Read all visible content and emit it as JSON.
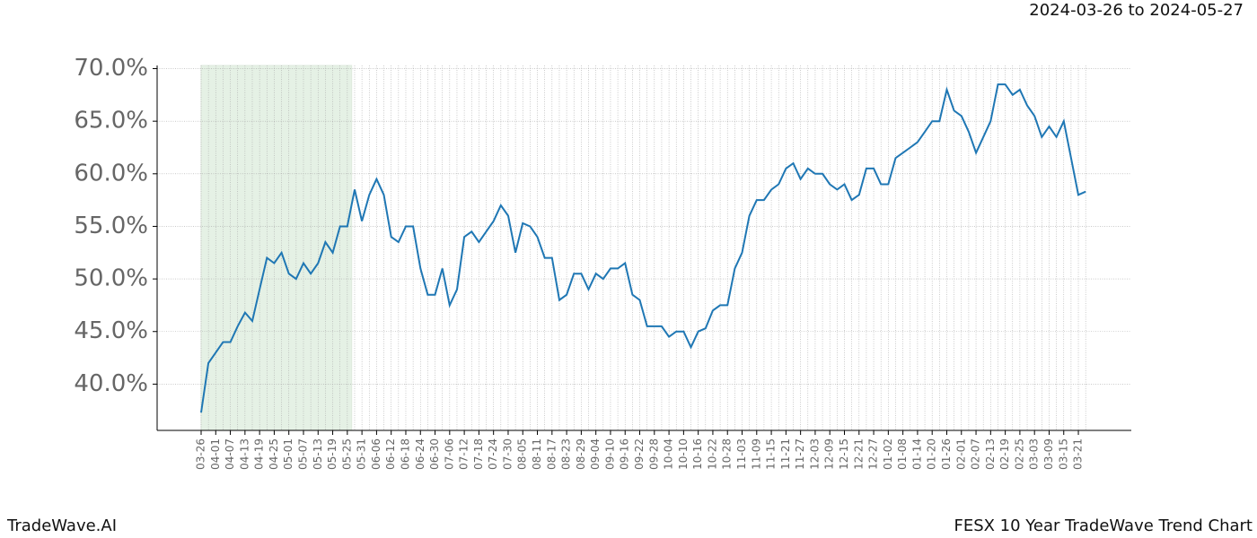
{
  "chart_data": {
    "type": "line",
    "subtitle": "2024-03-26 to 2024-05-27",
    "footer_left": "TradeWave.AI",
    "footer_right": "FESX 10 Year TradeWave Trend Chart",
    "categories": [
      "03-26",
      null,
      "04-01",
      null,
      "04-07",
      null,
      "04-13",
      null,
      "04-19",
      null,
      "04-25",
      null,
      "05-01",
      null,
      "05-07",
      null,
      "05-13",
      null,
      "05-19",
      null,
      "05-25",
      null,
      "05-31",
      null,
      "06-06",
      null,
      "06-12",
      null,
      "06-18",
      null,
      "06-24",
      null,
      "06-30",
      null,
      "07-06",
      null,
      "07-12",
      null,
      "07-18",
      null,
      "07-24",
      null,
      "07-30",
      null,
      "08-05",
      null,
      "08-11",
      null,
      "08-17",
      null,
      "08-23",
      null,
      "08-29",
      null,
      "09-04",
      null,
      "09-10",
      null,
      "09-16",
      null,
      "09-22",
      null,
      "09-28",
      null,
      "10-04",
      null,
      "10-10",
      null,
      "10-16",
      null,
      "10-22",
      null,
      "10-28",
      null,
      "11-03",
      null,
      "11-09",
      null,
      "11-15",
      null,
      "11-21",
      null,
      "11-27",
      null,
      "12-03",
      null,
      "12-09",
      null,
      "12-15",
      null,
      "12-21",
      null,
      "12-27",
      null,
      "01-02",
      null,
      "01-08",
      null,
      "01-14",
      null,
      "01-20",
      null,
      "01-26",
      null,
      "02-01",
      null,
      "02-07",
      null,
      "02-13",
      null,
      "02-19",
      null,
      "02-25",
      null,
      "03-03",
      null,
      "03-09",
      null,
      "03-15",
      null,
      "03-21",
      null
    ],
    "values": [
      37.3,
      42,
      43,
      44,
      44,
      45.5,
      46.8,
      46,
      49,
      52,
      51.5,
      52.5,
      50.5,
      50,
      51.5,
      50.5,
      51.5,
      53.5,
      52.5,
      55,
      55,
      58.5,
      55.5,
      58,
      59.5,
      58,
      54,
      53.5,
      55,
      55,
      51,
      48.5,
      48.5,
      51,
      47.5,
      49,
      54,
      54.5,
      53.5,
      54.5,
      55.5,
      57,
      56,
      52.5,
      55.3,
      55,
      54,
      52,
      52,
      48,
      48.5,
      50.5,
      50.5,
      49,
      50.5,
      50,
      51,
      51,
      51.5,
      48.5,
      48,
      45.5,
      45.5,
      45.5,
      44.5,
      45,
      45,
      43.5,
      45,
      45.3,
      47,
      47.5,
      47.5,
      51,
      52.5,
      56,
      57.5,
      57.5,
      58.5,
      59,
      60.5,
      61,
      59.5,
      60.5,
      60,
      60,
      59,
      58.5,
      59,
      57.5,
      58,
      60.5,
      60.5,
      59,
      59,
      61.5,
      62,
      62.5,
      63,
      64,
      65,
      65,
      68,
      66,
      65.5,
      64,
      62,
      63.5,
      65,
      68.5,
      68.5,
      67.5,
      68,
      66.5,
      65.5,
      63.5,
      64.5,
      63.5,
      65,
      61.5,
      58,
      58.3
    ],
    "color": "#1f77b4",
    "highlight_range": [
      0,
      20.6
    ],
    "highlight_color": "#d5e8d4",
    "ylim": [
      35.6,
      70.3
    ],
    "yticks": [
      {
        "value": 40,
        "label": "40.0%"
      },
      {
        "value": 45,
        "label": "45.0%"
      },
      {
        "value": 50,
        "label": "50.0%"
      },
      {
        "value": 55,
        "label": "55.0%"
      },
      {
        "value": 60,
        "label": "60.0%"
      },
      {
        "value": 65,
        "label": "65.0%"
      },
      {
        "value": 70,
        "label": "70.0%"
      }
    ],
    "grid": true
  }
}
